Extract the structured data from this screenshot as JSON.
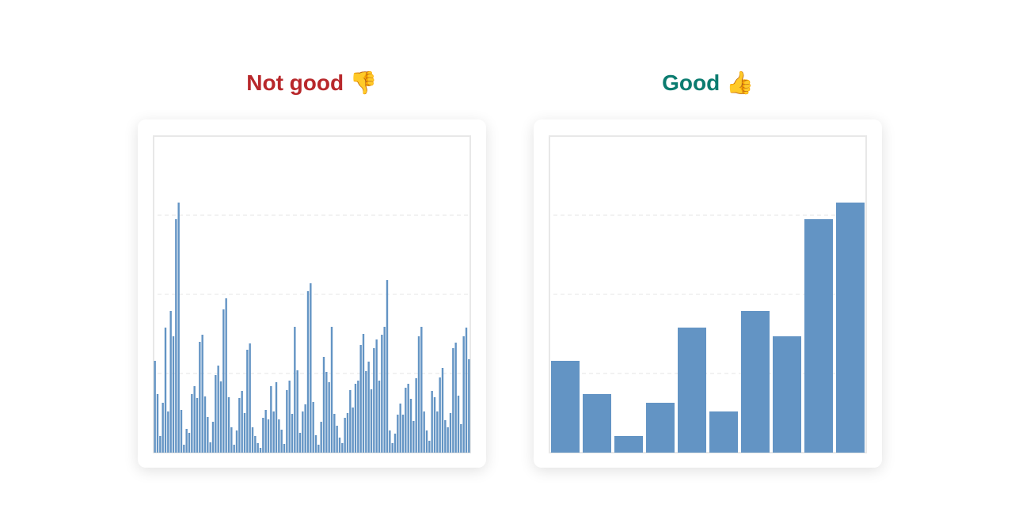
{
  "chart_data": [
    {
      "type": "bar",
      "title": "Not good 👎",
      "title_color": "#b8282b",
      "color": "#6394c4",
      "values": [
        1.16,
        0.74,
        0.21,
        0.63,
        1.58,
        0.52,
        1.79,
        1.47,
        2.95,
        3.16,
        0.54,
        0.1,
        0.3,
        0.25,
        0.74,
        0.84,
        0.69,
        1.4,
        1.49,
        0.71,
        0.45,
        0.13,
        0.39,
        0.98,
        1.1,
        0.9,
        1.81,
        1.95,
        0.7,
        0.32,
        0.1,
        0.28,
        0.69,
        0.78,
        0.5,
        1.3,
        1.38,
        0.32,
        0.21,
        0.12,
        0.06,
        0.44,
        0.54,
        0.42,
        0.84,
        0.52,
        0.89,
        0.42,
        0.29,
        0.11,
        0.79,
        0.91,
        0.49,
        1.59,
        1.04,
        0.25,
        0.52,
        0.61,
        2.04,
        2.14,
        0.64,
        0.22,
        0.1,
        0.39,
        1.21,
        1.02,
        0.89,
        1.59,
        0.49,
        0.34,
        0.19,
        0.12,
        0.44,
        0.5,
        0.79,
        0.57,
        0.87,
        0.91,
        1.36,
        1.5,
        1.03,
        1.15,
        0.8,
        1.32,
        1.43,
        0.91,
        1.49,
        1.59,
        2.18,
        0.28,
        0.12,
        0.24,
        0.48,
        0.62,
        0.48,
        0.82,
        0.87,
        0.68,
        0.4,
        0.94,
        1.47,
        1.59,
        0.52,
        0.28,
        0.15,
        0.78,
        0.7,
        0.52,
        0.95,
        1.07,
        0.41,
        0.32,
        0.5,
        1.32,
        1.39,
        0.72,
        0.36,
        1.47,
        1.58,
        1.18
      ],
      "ylim": [
        0,
        4
      ],
      "yticks": [
        1,
        2,
        3
      ],
      "grid": true
    },
    {
      "type": "bar",
      "title": "Good 👍",
      "title_color": "#0b7c70",
      "color": "#6394c4",
      "values": [
        1.16,
        0.74,
        0.21,
        0.63,
        1.58,
        0.52,
        1.79,
        1.47,
        2.95,
        3.16
      ],
      "ylim": [
        0,
        4
      ],
      "yticks": [
        1,
        2,
        3
      ],
      "grid": true
    }
  ]
}
